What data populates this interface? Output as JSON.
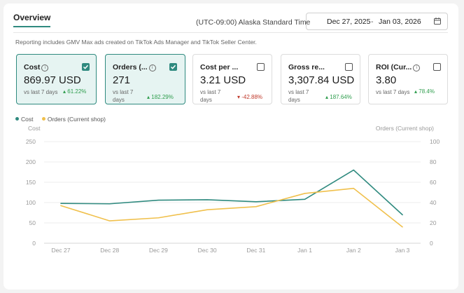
{
  "header": {
    "tab_label": "Overview",
    "timezone": "(UTC-09:00) Alaska Standard Time",
    "date_start": "Dec 27, 2025",
    "date_separator": "-",
    "date_end": "Jan 03, 2026"
  },
  "note": "Reporting includes GMV Max ads created on TikTok Ads Manager and TikTok Seller Center.",
  "cards": [
    {
      "title": "Cost",
      "value": "869.97 USD",
      "vs": "vs last 7 days",
      "change": "61.22%",
      "trend": "up",
      "checked": true
    },
    {
      "title": "Orders (...",
      "value": "271",
      "vs": "vs last 7 days",
      "change": "182.29%",
      "trend": "up",
      "checked": true
    },
    {
      "title": "Cost per ...",
      "value": "3.21 USD",
      "vs": "vs last 7 days",
      "change": "-42.88%",
      "trend": "down",
      "checked": false
    },
    {
      "title": "Gross re...",
      "value": "3,307.84 USD",
      "vs": "vs last 7 days",
      "change": "187.64%",
      "trend": "up",
      "checked": false
    },
    {
      "title": "ROI (Cur...",
      "value": "3.80",
      "vs": "vs last 7 days",
      "change": "78.4%",
      "trend": "up",
      "checked": false
    }
  ],
  "colors": {
    "cost": "#2f8a7f",
    "orders": "#f0c04c",
    "active_bg": "#e6f4f2"
  },
  "chart_data": {
    "type": "line",
    "categories": [
      "Dec 27",
      "Dec 28",
      "Dec 29",
      "Dec 30",
      "Dec 31",
      "Jan 1",
      "Jan 2",
      "Jan 3"
    ],
    "series": [
      {
        "name": "Cost",
        "axis": "left",
        "values": [
          98,
          97,
          106,
          107,
          102,
          108,
          180,
          70
        ]
      },
      {
        "name": "Orders (Current shop)",
        "axis": "right",
        "values": [
          37,
          22,
          25,
          33,
          36,
          49,
          54,
          16
        ]
      }
    ],
    "left_axis": {
      "title": "Cost",
      "ticks": [
        "0",
        "50",
        "100",
        "150",
        "200",
        "250"
      ],
      "range": [
        0,
        250
      ]
    },
    "right_axis": {
      "title": "Orders (Current shop)",
      "ticks": [
        "0",
        "20",
        "40",
        "60",
        "80",
        "100"
      ],
      "range": [
        0,
        100
      ]
    },
    "legend_position": "top-left",
    "grid": true
  }
}
